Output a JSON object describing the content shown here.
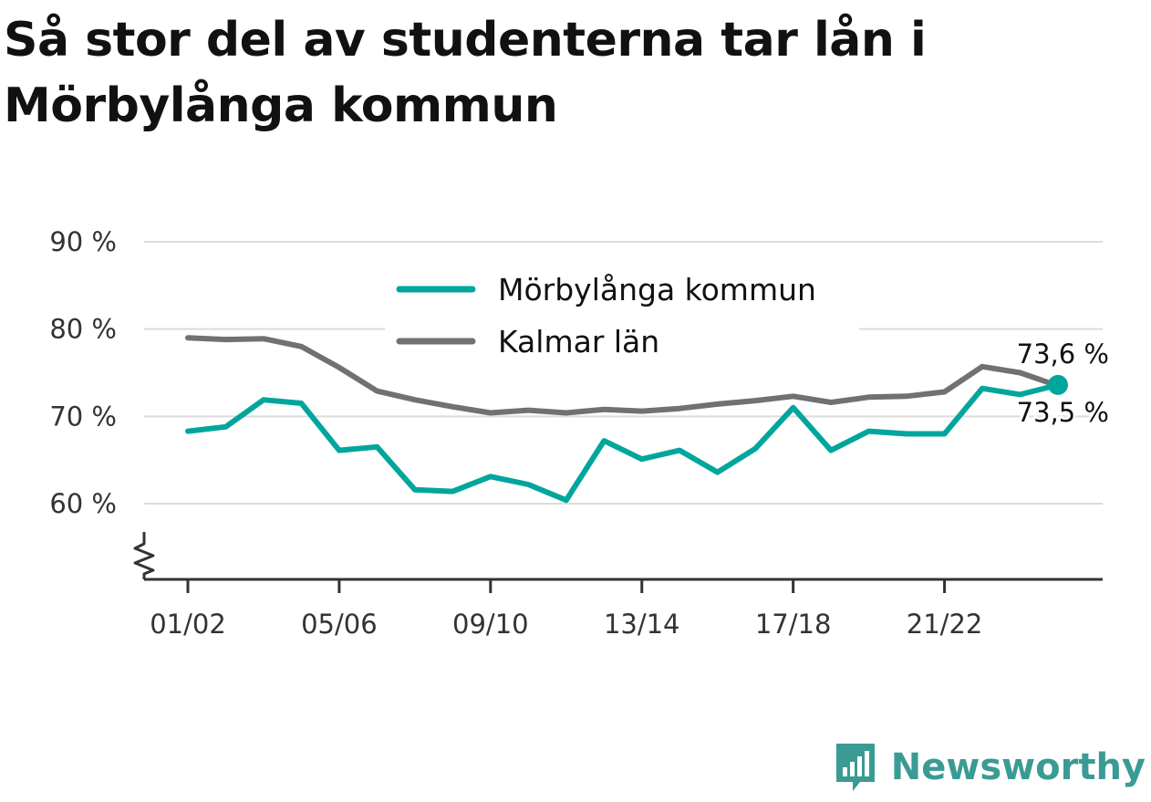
{
  "title": "Så stor del av studenterna tar lån i Mörbylånga kommun",
  "brand": {
    "name": "Newsworthy",
    "logo_icon": "newsworthy-logo-icon",
    "color": "#3a9b94"
  },
  "chart_data": {
    "type": "line",
    "title": "Så stor del av studenterna tar lån i Mörbylånga kommun",
    "xlabel": "",
    "ylabel": "",
    "ylim": [
      51,
      90
    ],
    "yticks": [
      60,
      70,
      80,
      90
    ],
    "ytick_labels": [
      "60 %",
      "70 %",
      "80 %",
      "90 %"
    ],
    "axis_break": true,
    "grid": true,
    "legend_position": "top-center",
    "x": [
      "01/02",
      "02/03",
      "03/04",
      "04/05",
      "05/06",
      "06/07",
      "07/08",
      "08/09",
      "09/10",
      "10/11",
      "11/12",
      "12/13",
      "13/14",
      "14/15",
      "15/16",
      "16/17",
      "17/18",
      "18/19",
      "19/20",
      "20/21",
      "21/22",
      "22/23",
      "23/24",
      "24/25"
    ],
    "xtick_labels": [
      "01/02",
      "05/06",
      "09/10",
      "13/14",
      "17/18",
      "21/22"
    ],
    "series": [
      {
        "name": "Mörbylånga kommun",
        "color": "#00a69c",
        "values": [
          68.3,
          68.8,
          71.9,
          71.5,
          66.1,
          66.5,
          61.6,
          61.4,
          63.1,
          62.2,
          60.4,
          67.2,
          65.1,
          66.1,
          63.6,
          66.3,
          71.0,
          66.1,
          68.3,
          68.0,
          68.0,
          73.2,
          72.5,
          73.6
        ],
        "end_label": "73,6 %"
      },
      {
        "name": "Kalmar län",
        "color": "#717075",
        "values": [
          79.0,
          78.8,
          78.9,
          78.0,
          75.6,
          72.9,
          71.9,
          71.1,
          70.4,
          70.7,
          70.4,
          70.8,
          70.6,
          70.9,
          71.4,
          71.8,
          72.3,
          71.6,
          72.2,
          72.3,
          72.8,
          75.7,
          75.0,
          73.5
        ],
        "end_label": "73,5 %"
      }
    ]
  }
}
